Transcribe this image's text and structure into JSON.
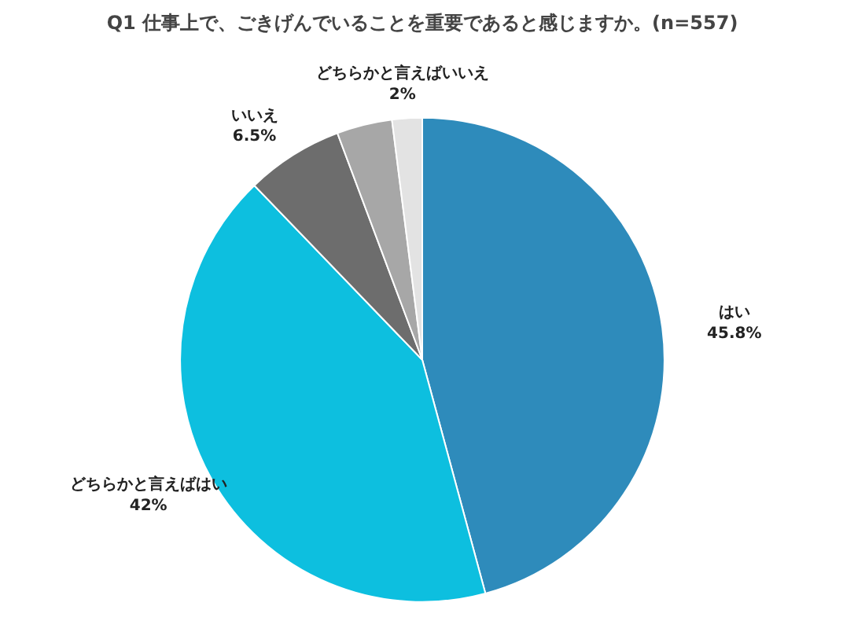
{
  "chart_data": {
    "type": "pie",
    "title": "Q1 仕事上で、ごきげんでいることを重要であると感じますか。(n=557)",
    "categories": [
      "はい",
      "どちらかと言えばはい",
      "いいえ",
      null,
      "どちらかと言えばいいえ"
    ],
    "values": [
      45.8,
      42,
      6.5,
      3.7,
      2
    ],
    "value_labels": [
      "45.8%",
      "42%",
      "6.5%",
      null,
      "2%"
    ],
    "colors": [
      "#2e8bbb",
      "#0dbfdf",
      "#6d6d6d",
      "#a7a7a7",
      "#e3e3e3"
    ]
  }
}
